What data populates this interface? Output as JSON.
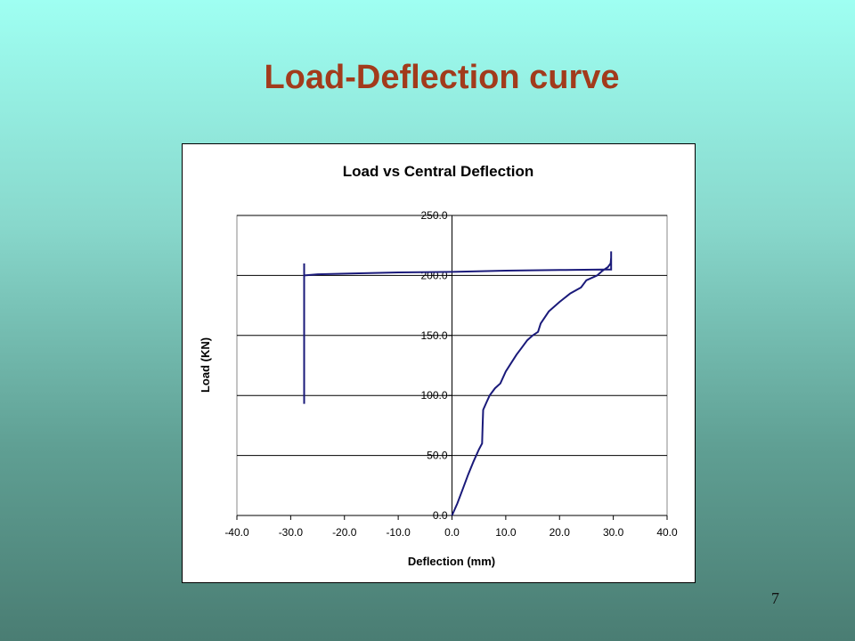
{
  "slide": {
    "title": "Load-Deflection curve",
    "page_number": "7"
  },
  "chart_data": {
    "type": "line",
    "title": "Load vs Central Deflection",
    "xlabel": "Deflection (mm)",
    "ylabel": "Load (KN)",
    "xlim": [
      -40,
      40
    ],
    "ylim": [
      0,
      250
    ],
    "x_ticks": [
      "-40.0",
      "-30.0",
      "-20.0",
      "-10.0",
      "0.0",
      "10.0",
      "20.0",
      "30.0",
      "40.0"
    ],
    "y_ticks": [
      "0.0",
      "50.0",
      "100.0",
      "150.0",
      "200.0",
      "250.0"
    ],
    "grid": "horizontal major gridlines",
    "legend": "none",
    "line_color": "#1a1a7a",
    "series": [
      {
        "x": [
          0,
          1,
          2,
          3,
          4,
          5,
          5.6,
          5.7,
          5.8,
          6.5,
          7,
          8,
          9,
          10,
          11,
          12,
          13,
          14,
          15,
          16,
          16.5,
          18,
          20,
          22,
          24,
          25,
          27,
          28,
          29,
          29.5,
          29.6,
          29.6,
          29.6,
          29.4,
          28,
          20,
          10,
          0,
          -10,
          -20,
          -25,
          -27.5,
          -27.5,
          -27.5
        ],
        "y": [
          0,
          10,
          22,
          34,
          45,
          55,
          60,
          75,
          88,
          95,
          100,
          106,
          110,
          120,
          127,
          134,
          140,
          146,
          150,
          153,
          160,
          170,
          178,
          185,
          190,
          196,
          200,
          204,
          207,
          210,
          215,
          220,
          205,
          205,
          205,
          204.5,
          204,
          203,
          202.5,
          201.5,
          201,
          200,
          210,
          93
        ]
      }
    ]
  }
}
